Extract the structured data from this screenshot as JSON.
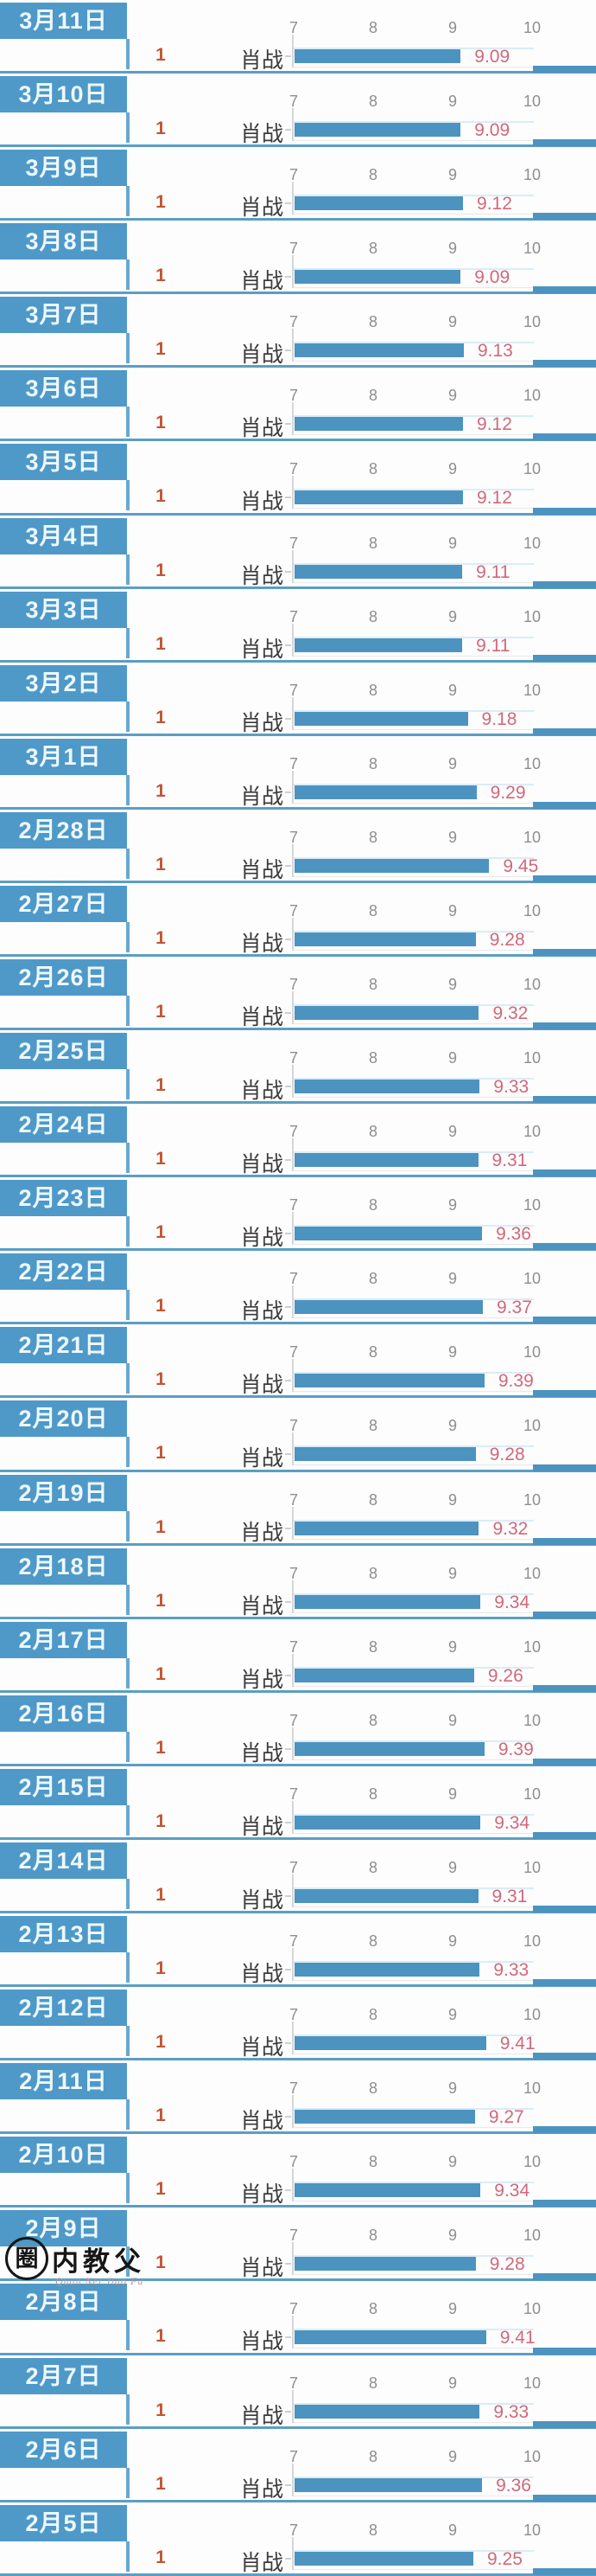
{
  "list": {
    "rank_label": "1",
    "artist": "肖战",
    "axis_ticks": [
      "7",
      "8",
      "9",
      "10"
    ]
  },
  "watermark": {
    "text": "圈内教父",
    "subtext": "Quan Nei Jiao Fu"
  },
  "chart_data": {
    "type": "bar",
    "orientation": "horizontal",
    "title": "",
    "categories": [
      "3月11日",
      "3月10日",
      "3月9日",
      "3月8日",
      "3月7日",
      "3月6日",
      "3月5日",
      "3月4日",
      "3月3日",
      "3月2日",
      "3月1日",
      "2月28日",
      "2月27日",
      "2月26日",
      "2月25日",
      "2月24日",
      "2月23日",
      "2月22日",
      "2月21日",
      "2月20日",
      "2月19日",
      "2月18日",
      "2月17日",
      "2月16日",
      "2月15日",
      "2月14日",
      "2月13日",
      "2月12日",
      "2月11日",
      "2月10日",
      "2月9日",
      "2月8日",
      "2月7日",
      "2月6日",
      "2月5日"
    ],
    "series": [
      {
        "name": "肖战",
        "rank": "1",
        "values": [
          9.09,
          9.09,
          9.12,
          9.09,
          9.13,
          9.12,
          9.12,
          9.11,
          9.11,
          9.18,
          9.29,
          9.45,
          9.28,
          9.32,
          9.33,
          9.31,
          9.36,
          9.37,
          9.39,
          9.28,
          9.32,
          9.34,
          9.26,
          9.39,
          9.34,
          9.31,
          9.33,
          9.41,
          9.27,
          9.34,
          9.28,
          9.41,
          9.33,
          9.36,
          9.25
        ]
      }
    ],
    "xlim": [
      7,
      10
    ],
    "xticks": [
      7,
      8,
      9,
      10
    ],
    "value_labels": true,
    "legend_position": "none",
    "grid": "off"
  },
  "colors": {
    "header_blue": "#4e99c8",
    "bar_blue": "#4d93c0",
    "separator_blue": "#5b9ec4",
    "rank_orange": "#bf5636",
    "value_pink": "#d2687a",
    "tick_gray": "#8e8e8e",
    "artist_dark": "#3a3a3a"
  }
}
